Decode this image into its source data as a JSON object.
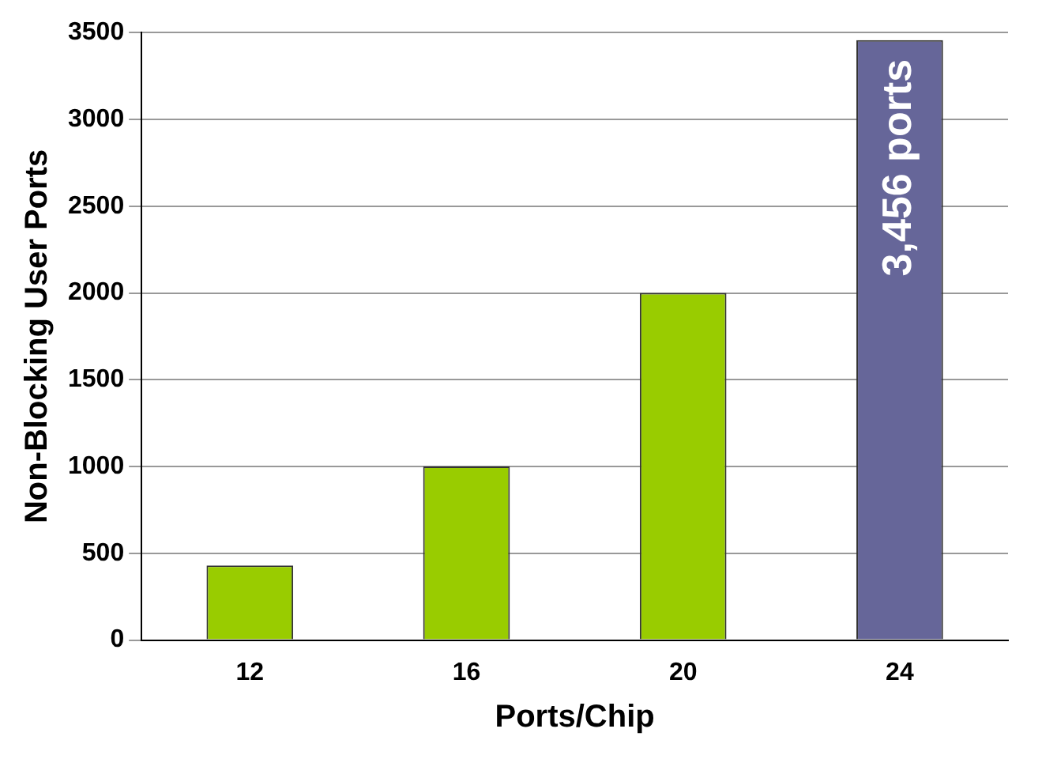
{
  "chart_data": {
    "type": "bar",
    "xlabel": "Ports/Chip",
    "ylabel": "Non-Blocking User Ports",
    "categories": [
      "12",
      "16",
      "20",
      "24"
    ],
    "values": [
      430,
      1000,
      2000,
      3456
    ],
    "colors": [
      "#99cc00",
      "#99cc00",
      "#99cc00",
      "#666699"
    ],
    "value_labels": [
      null,
      null,
      null,
      "3,456 ports"
    ],
    "ylim": [
      0,
      3500
    ],
    "yticks": [
      0,
      500,
      1000,
      1500,
      2000,
      2500,
      3000,
      3500
    ],
    "grid": "y",
    "legend": false
  }
}
